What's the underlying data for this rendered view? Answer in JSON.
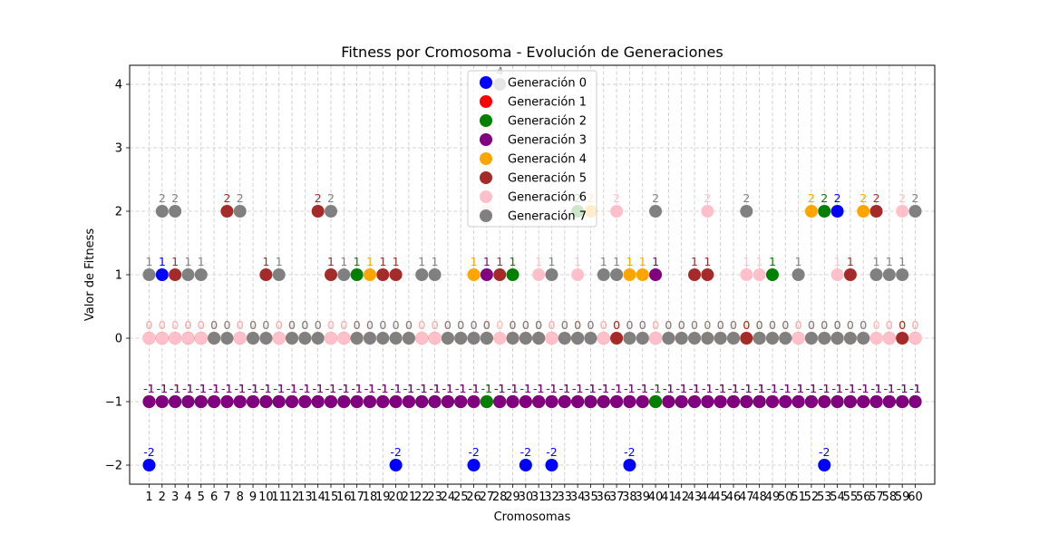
{
  "chart_data": {
    "type": "scatter",
    "title": "Fitness por Cromosoma - Evolución de Generaciones",
    "xlabel": "Cromosomas",
    "ylabel": "Valor de Fitness",
    "ylim": [
      -2.3,
      4.3
    ],
    "xlim": [
      -0.5,
      61.5
    ],
    "yticks": [
      -2,
      -1,
      0,
      1,
      2,
      3,
      4
    ],
    "xticks": [
      1,
      2,
      3,
      4,
      5,
      6,
      7,
      8,
      9,
      10,
      11,
      12,
      13,
      14,
      15,
      16,
      17,
      18,
      19,
      20,
      21,
      22,
      23,
      24,
      25,
      26,
      27,
      28,
      29,
      30,
      31,
      32,
      33,
      34,
      35,
      36,
      37,
      38,
      39,
      40,
      41,
      42,
      43,
      44,
      45,
      46,
      47,
      48,
      49,
      50,
      51,
      52,
      53,
      54,
      55,
      56,
      57,
      58,
      59,
      60
    ],
    "grid": true,
    "legend_position": "top-center",
    "series": [
      {
        "name": "Generación 0",
        "color": "#0000ff",
        "values": [
          -2,
          1,
          0,
          -1,
          -1,
          -1,
          -1,
          -1,
          -1,
          -1,
          -1,
          -1,
          -1,
          -1,
          0,
          -1,
          -1,
          -1,
          -1,
          -2,
          -1,
          -1,
          -1,
          -1,
          -1,
          -2,
          -1,
          -1,
          -1,
          -2,
          -1,
          -2,
          -1,
          -1,
          -1,
          -1,
          -1,
          -2,
          -1,
          -1,
          -1,
          -1,
          -1,
          -1,
          -1,
          -1,
          -1,
          -1,
          -1,
          -1,
          -1,
          -1,
          -2,
          2,
          -1,
          -1,
          -1,
          -1,
          -1,
          -1
        ]
      },
      {
        "name": "Generación 1",
        "color": "#ff0000",
        "values": [
          -1,
          -1,
          -1,
          0,
          -1,
          -1,
          -1,
          -1,
          -1,
          -1,
          -1,
          -1,
          -1,
          -1,
          -1,
          -1,
          -1,
          -1,
          -1,
          -1,
          -1,
          -1,
          -1,
          -1,
          -1,
          -1,
          -1,
          -1,
          -1,
          -1,
          -1,
          -1,
          -1,
          -1,
          -1,
          -1,
          -1,
          -1,
          -1,
          -1,
          -1,
          -1,
          -1,
          -1,
          -1,
          -1,
          -1,
          -1,
          -1,
          -1,
          -1,
          -1,
          -1,
          -1,
          -1,
          -1,
          -1,
          -1,
          -1,
          -1
        ]
      },
      {
        "name": "Generación 2",
        "color": "#008000",
        "values": [
          -1,
          -1,
          -1,
          -1,
          -1,
          -1,
          -1,
          -1,
          -1,
          -1,
          -1,
          -1,
          -1,
          -1,
          -1,
          -1,
          1,
          -1,
          -1,
          -1,
          -1,
          -1,
          -1,
          -1,
          -1,
          -1,
          -1,
          -1,
          1,
          -1,
          -1,
          -1,
          -1,
          2,
          -1,
          -1,
          -1,
          -1,
          -1,
          -1,
          -1,
          -1,
          -1,
          -1,
          -1,
          -1,
          -1,
          -1,
          1,
          -1,
          -1,
          -1,
          2,
          -1,
          -1,
          -1,
          -1,
          -1,
          -1,
          -1
        ]
      },
      {
        "name": "Generación 3",
        "color": "#800080",
        "values": [
          -1,
          -1,
          -1,
          -1,
          -1,
          -1,
          -1,
          -1,
          -1,
          -1,
          -1,
          -1,
          -1,
          -1,
          -1,
          -1,
          -1,
          -1,
          -1,
          -1,
          -1,
          -1,
          -1,
          -1,
          -1,
          -1,
          1,
          -1,
          -1,
          -1,
          -1,
          -1,
          -1,
          -1,
          -1,
          -1,
          -1,
          -1,
          -1,
          1,
          -1,
          -1,
          -1,
          -1,
          -1,
          -1,
          -1,
          -1,
          -1,
          -1,
          -1,
          -1,
          -1,
          -1,
          -1,
          -1,
          -1,
          -1,
          -1,
          -1
        ]
      },
      {
        "name": "Generación 4",
        "color": "#ffa500",
        "values": [
          0,
          0,
          0,
          0,
          0,
          0,
          0,
          0,
          0,
          0,
          0,
          0,
          0,
          0,
          0,
          0,
          0,
          1,
          0,
          0,
          0,
          0,
          0,
          0,
          0,
          1,
          0,
          0,
          0,
          0,
          0,
          0,
          0,
          0,
          2,
          0,
          0,
          1,
          1,
          0,
          0,
          0,
          0,
          0,
          0,
          0,
          0,
          0,
          0,
          0,
          0,
          2,
          0,
          0,
          0,
          2,
          0,
          0,
          0,
          0
        ]
      },
      {
        "name": "Generación 5",
        "color": "#a52a2a",
        "values": [
          0,
          0,
          1,
          0,
          0,
          0,
          2,
          0,
          0,
          1,
          0,
          0,
          0,
          2,
          1,
          0,
          0,
          0,
          1,
          1,
          0,
          0,
          0,
          0,
          0,
          0,
          0,
          1,
          0,
          0,
          0,
          0,
          0,
          0,
          0,
          0,
          0,
          0,
          0,
          0,
          0,
          0,
          1,
          1,
          0,
          0,
          0,
          0,
          0,
          0,
          0,
          0,
          0,
          0,
          1,
          0,
          2,
          0,
          0,
          0
        ]
      },
      {
        "name": "Generación 6",
        "color": "#ffc0cb",
        "values": [
          0,
          0,
          0,
          0,
          0,
          0,
          0,
          0,
          0,
          0,
          0,
          0,
          0,
          0,
          0,
          0,
          0,
          0,
          0,
          0,
          0,
          0,
          0,
          0,
          0,
          0,
          2,
          0,
          0,
          0,
          1,
          0,
          0,
          1,
          0,
          0,
          2,
          0,
          0,
          0,
          0,
          0,
          0,
          2,
          0,
          0,
          1,
          1,
          0,
          0,
          0,
          0,
          0,
          1,
          0,
          0,
          0,
          0,
          2,
          0
        ]
      },
      {
        "name": "Generación 7",
        "color": "#808080",
        "values": [
          1,
          2,
          2,
          1,
          1,
          0,
          0,
          2,
          0,
          0,
          1,
          0,
          0,
          0,
          2,
          1,
          0,
          0,
          0,
          0,
          0,
          1,
          1,
          0,
          0,
          0,
          0,
          4,
          0,
          0,
          0,
          1,
          0,
          0,
          0,
          1,
          1,
          0,
          0,
          2,
          0,
          0,
          0,
          0,
          0,
          0,
          2,
          0,
          0,
          0,
          1,
          0,
          0,
          0,
          0,
          0,
          1,
          1,
          1,
          2
        ]
      }
    ]
  }
}
